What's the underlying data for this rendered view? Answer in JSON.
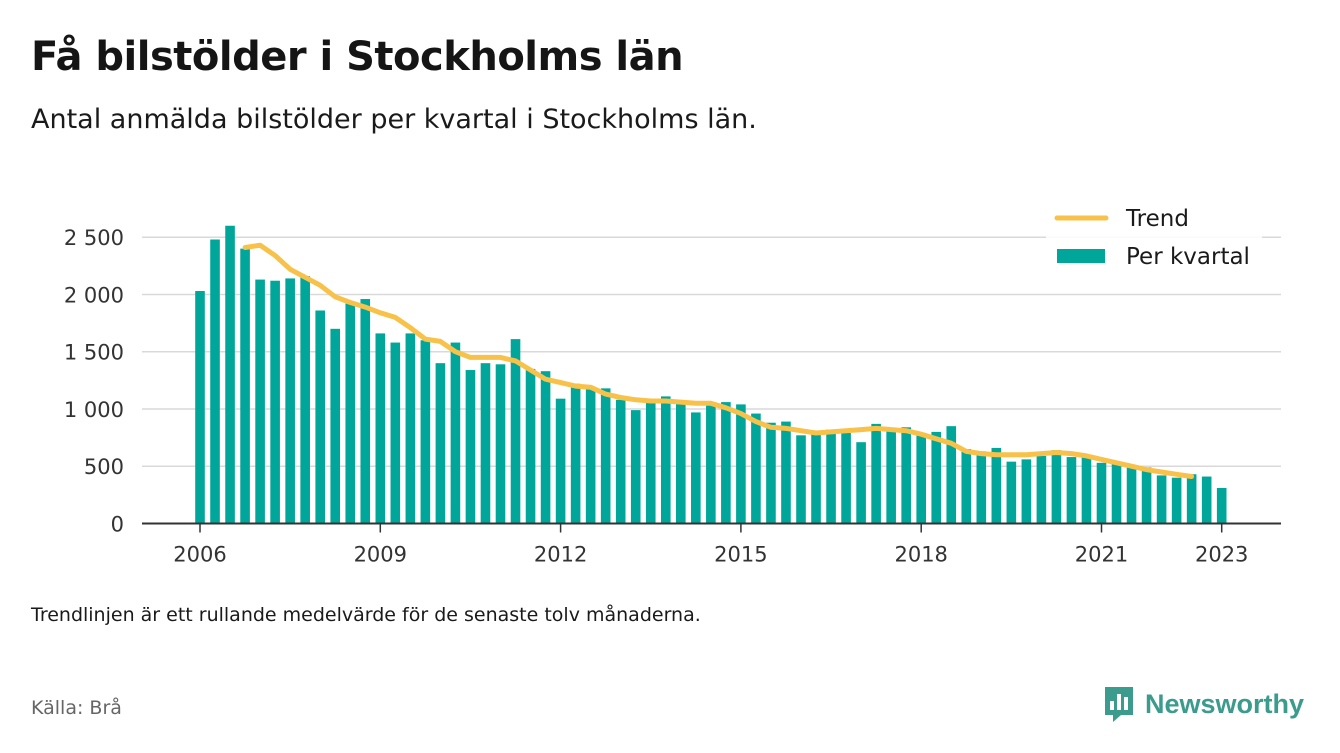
{
  "header": {
    "title": "Få bilstölder i Stockholms län",
    "subtitle": "Antal anmälda bilstölder per kvartal i Stockholms län."
  },
  "footer": {
    "note": "Trendlinjen är ett rullande medelvärde för de senaste tolv månaderna.",
    "source": "Källa: Brå",
    "brand": "Newsworthy"
  },
  "colors": {
    "bars": "#00a699",
    "trend": "#f8c24a",
    "grid": "#d9d9d9",
    "axis": "#333333",
    "brand": "#3b9b8c"
  },
  "chart_data": {
    "type": "bar",
    "ylim": [
      0,
      2700
    ],
    "yticks": [
      0,
      500,
      1000,
      1500,
      2000,
      2500
    ],
    "ytick_labels": [
      "0",
      "500",
      "1 000",
      "1 500",
      "2 000",
      "2 500"
    ],
    "xticks": [
      2006,
      2009,
      2012,
      2015,
      2018,
      2021,
      2023
    ],
    "xtick_labels": [
      "2006",
      "2009",
      "2012",
      "2015",
      "2018",
      "2021",
      "2023"
    ],
    "grid": "horizontal",
    "legend_position": "top-right",
    "series": [
      {
        "name": "Per kvartal",
        "kind": "bar",
        "start_year": 2006,
        "start_quarter": 1,
        "values": [
          2030,
          2480,
          2600,
          2400,
          2130,
          2120,
          2140,
          2160,
          1860,
          1700,
          1920,
          1960,
          1660,
          1580,
          1660,
          1600,
          1400,
          1580,
          1340,
          1400,
          1390,
          1610,
          1350,
          1330,
          1090,
          1220,
          1190,
          1180,
          1080,
          990,
          1060,
          1110,
          1060,
          970,
          1060,
          1060,
          1040,
          960,
          880,
          890,
          770,
          780,
          820,
          790,
          710,
          870,
          820,
          840,
          780,
          800,
          850,
          650,
          630,
          660,
          540,
          560,
          590,
          640,
          580,
          600,
          530,
          540,
          510,
          490,
          420,
          400,
          430,
          410,
          310
        ]
      },
      {
        "name": "Trend",
        "kind": "line",
        "start_year": 2006,
        "start_quarter": 4,
        "values": [
          2410,
          2430,
          2340,
          2220,
          2150,
          2080,
          1980,
          1930,
          1890,
          1840,
          1800,
          1710,
          1610,
          1590,
          1500,
          1450,
          1450,
          1450,
          1420,
          1340,
          1260,
          1230,
          1200,
          1190,
          1130,
          1100,
          1080,
          1070,
          1070,
          1060,
          1050,
          1050,
          1010,
          960,
          890,
          840,
          830,
          810,
          790,
          800,
          810,
          820,
          830,
          820,
          810,
          780,
          740,
          700,
          630,
          610,
          600,
          600,
          600,
          610,
          620,
          610,
          590,
          560,
          530,
          500,
          470,
          450,
          430,
          410
        ]
      }
    ]
  }
}
